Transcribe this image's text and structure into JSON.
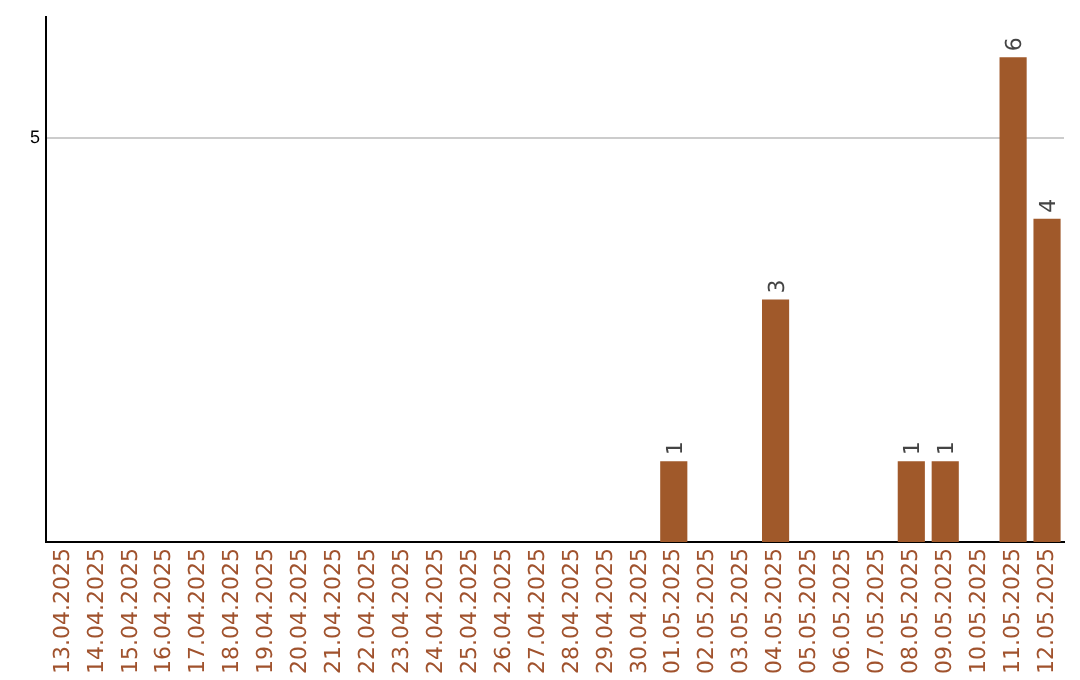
{
  "chart_data": {
    "type": "bar",
    "categories": [
      "13.04.2025",
      "14.04.2025",
      "15.04.2025",
      "16.04.2025",
      "17.04.2025",
      "18.04.2025",
      "19.04.2025",
      "20.04.2025",
      "21.04.2025",
      "22.04.2025",
      "23.04.2025",
      "24.04.2025",
      "25.04.2025",
      "26.04.2025",
      "27.04.2025",
      "28.04.2025",
      "29.04.2025",
      "30.04.2025",
      "01.05.2025",
      "02.05.2025",
      "03.05.2025",
      "04.05.2025",
      "05.05.2025",
      "06.05.2025",
      "07.05.2025",
      "08.05.2025",
      "09.05.2025",
      "10.05.2025",
      "11.05.2025",
      "12.05.2025"
    ],
    "values": [
      null,
      null,
      null,
      null,
      null,
      null,
      null,
      null,
      null,
      null,
      null,
      null,
      null,
      null,
      null,
      null,
      null,
      null,
      1,
      null,
      null,
      3,
      null,
      null,
      null,
      1,
      1,
      null,
      6,
      4
    ],
    "color": "#a0592a",
    "ylim": [
      0,
      6.5
    ],
    "yticks": [
      5
    ],
    "grid": "y",
    "data_labels": true
  }
}
